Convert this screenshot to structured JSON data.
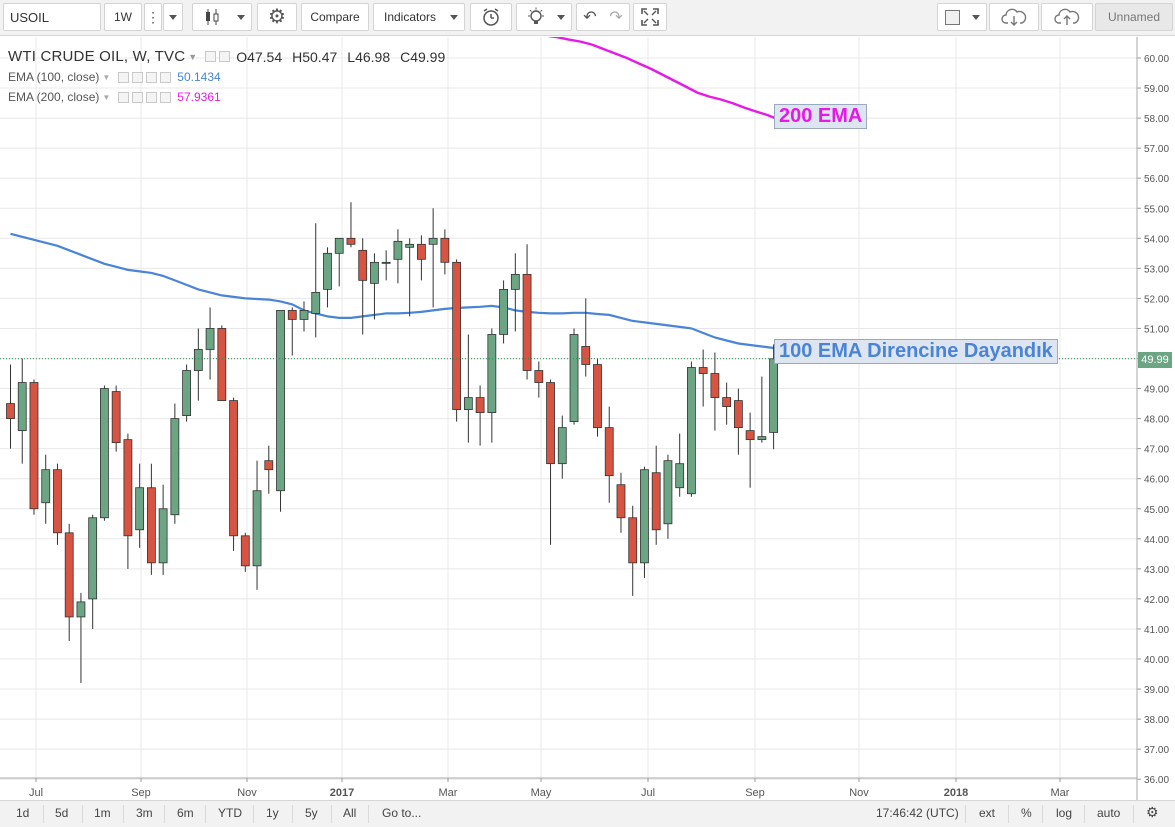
{
  "toolbar": {
    "symbol": "USOIL",
    "interval": "1W",
    "compare_label": "Compare",
    "indicators_label": "Indicators",
    "layout_name": "Unnamed",
    "icons": [
      "vertical-dots-icon",
      "candles-icon",
      "gear-icon",
      "alert-clock-icon",
      "lightbulb-icon",
      "undo-icon",
      "redo-icon",
      "fullscreen-icon",
      "square-icon",
      "cloud-download-icon",
      "cloud-upload-icon"
    ]
  },
  "legend": {
    "title": "WTI CRUDE OIL, W, TVC",
    "open": "O47.54",
    "high": "H50.47",
    "low": "L46.98",
    "close": "C49.99",
    "ema100_label": "EMA (100, close)",
    "ema100_value": "50.1434",
    "ema200_label": "EMA (200, close)",
    "ema200_value": "57.9361"
  },
  "annotations": {
    "ema200_tag": "200 EMA",
    "ema100_tag": "100 EMA Direncine Dayandık",
    "ema200_color": "#e619e6",
    "ema100_color": "#4a84d6"
  },
  "price_tag": "49.99",
  "bottombar": {
    "ranges": [
      "1d",
      "5d",
      "1m",
      "3m",
      "6m",
      "YTD",
      "1y",
      "5y",
      "All"
    ],
    "goto": "Go to...",
    "time": "17:46:42 (UTC)",
    "ext": "ext",
    "percent": "%",
    "log": "log",
    "auto": "auto"
  },
  "chart_data": {
    "type": "candlestick",
    "title": "WTI CRUDE OIL, W, TVC",
    "y_ticks": [
      "36.00",
      "37.00",
      "38.00",
      "39.00",
      "40.00",
      "41.00",
      "42.00",
      "43.00",
      "44.00",
      "45.00",
      "46.00",
      "47.00",
      "48.00",
      "49.00",
      "50.00",
      "51.00",
      "52.00",
      "53.00",
      "54.00",
      "55.00",
      "56.00",
      "57.00",
      "58.00",
      "59.00",
      "60.00"
    ],
    "x_ticks": [
      "Jul",
      "Sep",
      "Nov",
      "2017",
      "Mar",
      "May",
      "Jul",
      "Sep",
      "Nov",
      "2018",
      "Mar"
    ],
    "ylim": [
      36,
      60.6
    ],
    "colors": {
      "up": "#6ba583",
      "down": "#d75442",
      "ema100": "#4a84d6",
      "ema200": "#e619e6",
      "grid": "#e8e8e8"
    },
    "candles": [
      {
        "o": 48.5,
        "h": 49.8,
        "l": 47.0,
        "c": 48.0
      },
      {
        "o": 47.6,
        "h": 50.0,
        "l": 46.5,
        "c": 49.2
      },
      {
        "o": 49.2,
        "h": 49.3,
        "l": 44.8,
        "c": 45.0
      },
      {
        "o": 45.2,
        "h": 46.8,
        "l": 44.5,
        "c": 46.3
      },
      {
        "o": 46.3,
        "h": 46.5,
        "l": 43.8,
        "c": 44.2
      },
      {
        "o": 44.2,
        "h": 44.5,
        "l": 40.6,
        "c": 41.4
      },
      {
        "o": 41.4,
        "h": 42.2,
        "l": 39.2,
        "c": 41.9
      },
      {
        "o": 42.0,
        "h": 44.8,
        "l": 41.0,
        "c": 44.7
      },
      {
        "o": 44.7,
        "h": 49.1,
        "l": 44.6,
        "c": 49.0
      },
      {
        "o": 48.9,
        "h": 49.1,
        "l": 46.9,
        "c": 47.2
      },
      {
        "o": 47.3,
        "h": 47.5,
        "l": 43.0,
        "c": 44.1
      },
      {
        "o": 44.3,
        "h": 46.5,
        "l": 43.7,
        "c": 45.7
      },
      {
        "o": 45.7,
        "h": 46.5,
        "l": 42.8,
        "c": 43.2
      },
      {
        "o": 43.2,
        "h": 45.8,
        "l": 42.8,
        "c": 45.0
      },
      {
        "o": 44.8,
        "h": 48.5,
        "l": 44.5,
        "c": 48.0
      },
      {
        "o": 48.1,
        "h": 49.8,
        "l": 47.9,
        "c": 49.6
      },
      {
        "o": 49.6,
        "h": 51.0,
        "l": 48.6,
        "c": 50.3
      },
      {
        "o": 50.3,
        "h": 51.7,
        "l": 49.3,
        "c": 51.0
      },
      {
        "o": 51.0,
        "h": 51.1,
        "l": 48.6,
        "c": 48.6
      },
      {
        "o": 48.6,
        "h": 48.7,
        "l": 43.6,
        "c": 44.1
      },
      {
        "o": 44.1,
        "h": 44.2,
        "l": 42.9,
        "c": 43.1
      },
      {
        "o": 43.1,
        "h": 46.6,
        "l": 42.3,
        "c": 45.6
      },
      {
        "o": 46.6,
        "h": 47.1,
        "l": 45.5,
        "c": 46.3
      },
      {
        "o": 45.6,
        "h": 51.4,
        "l": 44.9,
        "c": 51.6
      },
      {
        "o": 51.6,
        "h": 51.7,
        "l": 50.1,
        "c": 51.3
      },
      {
        "o": 51.3,
        "h": 51.9,
        "l": 50.9,
        "c": 51.6
      },
      {
        "o": 51.5,
        "h": 54.5,
        "l": 50.7,
        "c": 52.2
      },
      {
        "o": 52.3,
        "h": 53.7,
        "l": 51.7,
        "c": 53.5
      },
      {
        "o": 53.5,
        "h": 54.0,
        "l": 52.4,
        "c": 54.0
      },
      {
        "o": 54.0,
        "h": 55.2,
        "l": 53.7,
        "c": 53.8
      },
      {
        "o": 53.6,
        "h": 54.0,
        "l": 50.8,
        "c": 52.6
      },
      {
        "o": 52.5,
        "h": 53.5,
        "l": 51.3,
        "c": 53.2
      },
      {
        "o": 53.2,
        "h": 53.6,
        "l": 52.6,
        "c": 53.2
      },
      {
        "o": 53.3,
        "h": 54.3,
        "l": 52.5,
        "c": 53.9
      },
      {
        "o": 53.7,
        "h": 54.0,
        "l": 51.4,
        "c": 53.8
      },
      {
        "o": 53.8,
        "h": 54.1,
        "l": 52.6,
        "c": 53.3
      },
      {
        "o": 53.8,
        "h": 55.0,
        "l": 51.7,
        "c": 54.0
      },
      {
        "o": 54.0,
        "h": 54.3,
        "l": 52.8,
        "c": 53.2
      },
      {
        "o": 53.2,
        "h": 53.3,
        "l": 47.9,
        "c": 48.3
      },
      {
        "o": 48.3,
        "h": 50.8,
        "l": 47.2,
        "c": 48.7
      },
      {
        "o": 48.7,
        "h": 49.1,
        "l": 47.1,
        "c": 48.2
      },
      {
        "o": 48.2,
        "h": 51.0,
        "l": 47.2,
        "c": 50.8
      },
      {
        "o": 50.8,
        "h": 52.6,
        "l": 50.5,
        "c": 52.3
      },
      {
        "o": 52.3,
        "h": 53.5,
        "l": 50.9,
        "c": 52.8
      },
      {
        "o": 52.8,
        "h": 53.8,
        "l": 49.3,
        "c": 49.6
      },
      {
        "o": 49.6,
        "h": 49.9,
        "l": 48.7,
        "c": 49.2
      },
      {
        "o": 49.2,
        "h": 49.3,
        "l": 43.8,
        "c": 46.5
      },
      {
        "o": 46.5,
        "h": 48.1,
        "l": 46.0,
        "c": 47.7
      },
      {
        "o": 47.9,
        "h": 51.0,
        "l": 47.8,
        "c": 50.8
      },
      {
        "o": 50.4,
        "h": 52.0,
        "l": 49.4,
        "c": 49.8
      },
      {
        "o": 49.8,
        "h": 50.0,
        "l": 47.4,
        "c": 47.7
      },
      {
        "o": 47.7,
        "h": 48.4,
        "l": 45.2,
        "c": 46.1
      },
      {
        "o": 45.8,
        "h": 46.2,
        "l": 44.2,
        "c": 44.7
      },
      {
        "o": 44.7,
        "h": 45.1,
        "l": 42.1,
        "c": 43.2
      },
      {
        "o": 43.2,
        "h": 46.4,
        "l": 42.7,
        "c": 46.3
      },
      {
        "o": 46.2,
        "h": 47.1,
        "l": 43.8,
        "c": 44.3
      },
      {
        "o": 44.5,
        "h": 46.8,
        "l": 44.0,
        "c": 46.6
      },
      {
        "o": 45.7,
        "h": 47.5,
        "l": 45.4,
        "c": 46.5
      },
      {
        "o": 45.5,
        "h": 49.9,
        "l": 45.4,
        "c": 49.7
      },
      {
        "o": 49.7,
        "h": 50.3,
        "l": 48.4,
        "c": 49.5
      },
      {
        "o": 49.5,
        "h": 50.2,
        "l": 47.6,
        "c": 48.7
      },
      {
        "o": 48.7,
        "h": 49.2,
        "l": 47.8,
        "c": 48.4
      },
      {
        "o": 48.6,
        "h": 49.0,
        "l": 46.8,
        "c": 47.7
      },
      {
        "o": 47.6,
        "h": 48.2,
        "l": 45.7,
        "c": 47.3
      },
      {
        "o": 47.3,
        "h": 49.4,
        "l": 47.2,
        "c": 47.4
      },
      {
        "o": 47.54,
        "h": 50.47,
        "l": 46.98,
        "c": 49.99
      }
    ],
    "ema100": [
      54.15,
      54.05,
      53.95,
      53.85,
      53.75,
      53.6,
      53.45,
      53.3,
      53.15,
      53.05,
      52.95,
      52.9,
      52.85,
      52.75,
      52.6,
      52.45,
      52.3,
      52.2,
      52.1,
      52.05,
      52.0,
      51.98,
      51.96,
      51.9,
      51.8,
      51.6,
      51.5,
      51.4,
      51.35,
      51.35,
      51.4,
      51.45,
      51.5,
      51.5,
      51.52,
      51.55,
      51.6,
      51.65,
      51.68,
      51.7,
      51.72,
      51.75,
      51.7,
      51.6,
      51.55,
      51.52,
      51.5,
      51.5,
      51.52,
      51.52,
      51.48,
      51.45,
      51.35,
      51.25,
      51.2,
      51.15,
      51.1,
      51.05,
      51.0,
      50.85,
      50.7,
      50.6,
      50.5,
      50.45,
      50.4,
      50.35,
      50.28,
      50.2,
      50.14
    ],
    "ema200": [
      60.75,
      60.7,
      60.62,
      60.55,
      60.45,
      60.3,
      60.15,
      60.0,
      59.82,
      59.65,
      59.45,
      59.25,
      59.05,
      58.85,
      58.72,
      58.62,
      58.5,
      58.35,
      58.22,
      58.1,
      57.94
    ]
  }
}
